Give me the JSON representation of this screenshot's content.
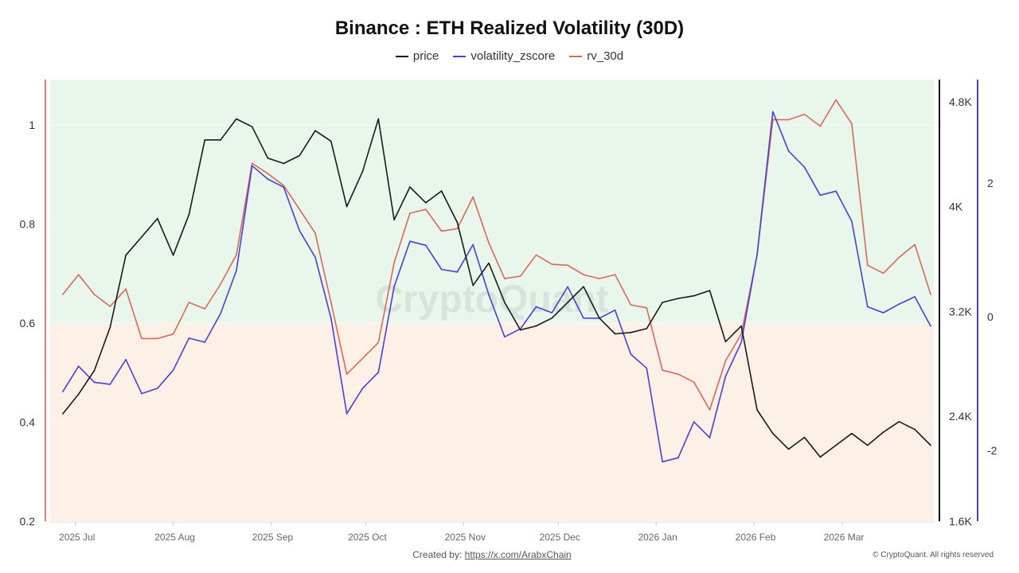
{
  "chart_data": {
    "type": "line",
    "title": "Binance : ETH Realized Volatility (30D)",
    "legend_placement": "top",
    "grid": false,
    "background_bands": [
      {
        "axis": "rv_30d",
        "from": 0.6,
        "to": 1.092,
        "color": "#e8f6ec"
      },
      {
        "axis": "rv_30d",
        "from": 0.2,
        "to": 0.6,
        "color": "#fdf0e6"
      }
    ],
    "x_ticks": [
      {
        "date": "2025-07-01",
        "label": "2025 Jul"
      },
      {
        "date": "2025-08-01",
        "label": "2025 Aug"
      },
      {
        "date": "2025-09-01",
        "label": "2025 Sep"
      },
      {
        "date": "2025-10-01",
        "label": "2025 Oct"
      },
      {
        "date": "2025-11-01",
        "label": "2025 Nov"
      },
      {
        "date": "2025-12-01",
        "label": "2025 Dec"
      },
      {
        "date": "2026-01-01",
        "label": "2026 Jan"
      },
      {
        "date": "2026-02-01",
        "label": "2026 Feb"
      },
      {
        "date": "2026-03-01",
        "label": "2026 Mar"
      }
    ],
    "xlim": [
      "2025-06-23",
      "2026-03-30"
    ],
    "axes": {
      "rv_30d": {
        "side": "left",
        "ylim": [
          0.2,
          1.092
        ],
        "ticks": [
          0.2,
          0.4,
          0.6,
          0.8,
          1
        ],
        "tick_labels": [
          "0.2",
          "0.4",
          "0.6",
          "0.8",
          "1"
        ],
        "color": "#e07b7b"
      },
      "price": {
        "side": "right",
        "ylim": [
          1600,
          4970
        ],
        "ticks": [
          1600,
          2400,
          3200,
          4000,
          4800
        ],
        "tick_labels": [
          "1.6K",
          "2.4K",
          "3.2K",
          "4K",
          "4.8K"
        ],
        "color": "#111111"
      },
      "volatility_zscore": {
        "side": "right",
        "ylim": [
          -3.06,
          3.55
        ],
        "ticks": [
          -2,
          0,
          2
        ],
        "tick_labels": [
          "-2",
          "0",
          "2"
        ],
        "color": "#4b3fd6"
      }
    },
    "x": [
      "2025-06-27",
      "2025-07-02",
      "2025-07-07",
      "2025-07-12",
      "2025-07-17",
      "2025-07-22",
      "2025-07-27",
      "2025-08-01",
      "2025-08-06",
      "2025-08-11",
      "2025-08-16",
      "2025-08-21",
      "2025-08-26",
      "2025-08-31",
      "2025-09-05",
      "2025-09-10",
      "2025-09-15",
      "2025-09-20",
      "2025-09-25",
      "2025-09-30",
      "2025-10-05",
      "2025-10-10",
      "2025-10-15",
      "2025-10-20",
      "2025-10-25",
      "2025-10-30",
      "2025-11-04",
      "2025-11-09",
      "2025-11-14",
      "2025-11-19",
      "2025-11-24",
      "2025-11-29",
      "2025-12-04",
      "2025-12-09",
      "2025-12-14",
      "2025-12-19",
      "2025-12-24",
      "2025-12-29",
      "2026-01-03",
      "2026-01-08",
      "2026-01-13",
      "2026-01-18",
      "2026-01-23",
      "2026-01-28",
      "2026-02-02",
      "2026-02-07",
      "2026-02-12",
      "2026-02-17",
      "2026-02-22",
      "2026-02-27",
      "2026-03-04",
      "2026-03-09",
      "2026-03-14",
      "2026-03-19",
      "2026-03-24",
      "2026-03-29"
    ],
    "series": [
      {
        "name": "price",
        "axis": "price",
        "color": "#1a1a1a",
        "values": [
          2420,
          2570,
          2750,
          3080,
          3630,
          3770,
          3910,
          3630,
          3940,
          4510,
          4510,
          4670,
          4610,
          4370,
          4330,
          4390,
          4580,
          4500,
          4000,
          4270,
          4670,
          3900,
          4150,
          4030,
          4120,
          3880,
          3400,
          3570,
          3270,
          3060,
          3090,
          3150,
          3270,
          3390,
          3150,
          3030,
          3040,
          3070,
          3270,
          3300,
          3320,
          3360,
          2970,
          3090,
          2450,
          2270,
          2150,
          2240,
          2090,
          2180,
          2270,
          2180,
          2280,
          2360,
          2300,
          2180
        ]
      },
      {
        "name": "volatility_zscore",
        "axis": "volatility_zscore",
        "color": "#4b3fd6",
        "values": [
          -1.12,
          -0.74,
          -0.98,
          -1.01,
          -0.64,
          -1.15,
          -1.07,
          -0.8,
          -0.32,
          -0.38,
          0.05,
          0.69,
          2.26,
          2.06,
          1.94,
          1.29,
          0.89,
          -0.02,
          -1.45,
          -1.07,
          -0.83,
          0.45,
          1.13,
          1.07,
          0.71,
          0.67,
          1.08,
          0.33,
          -0.3,
          -0.18,
          0.15,
          0.06,
          0.45,
          -0.02,
          -0.02,
          0.1,
          -0.56,
          -0.77,
          -2.17,
          -2.11,
          -1.57,
          -1.81,
          -0.89,
          -0.38,
          0.93,
          3.07,
          2.48,
          2.24,
          1.82,
          1.88,
          1.43,
          0.15,
          0.06,
          0.19,
          0.3,
          -0.14
        ]
      },
      {
        "name": "rv_30d",
        "axis": "rv_30d",
        "color": "#d9695a",
        "values": [
          0.658,
          0.698,
          0.658,
          0.634,
          0.669,
          0.569,
          0.569,
          0.578,
          0.642,
          0.629,
          0.679,
          0.738,
          0.923,
          0.902,
          0.878,
          0.83,
          0.782,
          0.642,
          0.497,
          0.529,
          0.561,
          0.722,
          0.822,
          0.83,
          0.786,
          0.791,
          0.855,
          0.762,
          0.69,
          0.695,
          0.738,
          0.719,
          0.717,
          0.698,
          0.69,
          0.698,
          0.637,
          0.631,
          0.505,
          0.497,
          0.481,
          0.425,
          0.524,
          0.578,
          0.738,
          1.011,
          1.011,
          1.022,
          0.998,
          1.051,
          1.003,
          0.717,
          0.701,
          0.733,
          0.759,
          0.658
        ]
      }
    ]
  },
  "legend": [
    {
      "label": "price",
      "color": "#1a1a1a"
    },
    {
      "label": "volatility_zscore",
      "color": "#4b3fd6"
    },
    {
      "label": "rv_30d",
      "color": "#d9695a"
    }
  ],
  "watermark": "CryptoQuant",
  "footer": {
    "created_by_label": "Created by:",
    "created_by_link": "https://x.com/ArabxChain",
    "copyright": "© CryptoQuant. All rights reserved"
  }
}
